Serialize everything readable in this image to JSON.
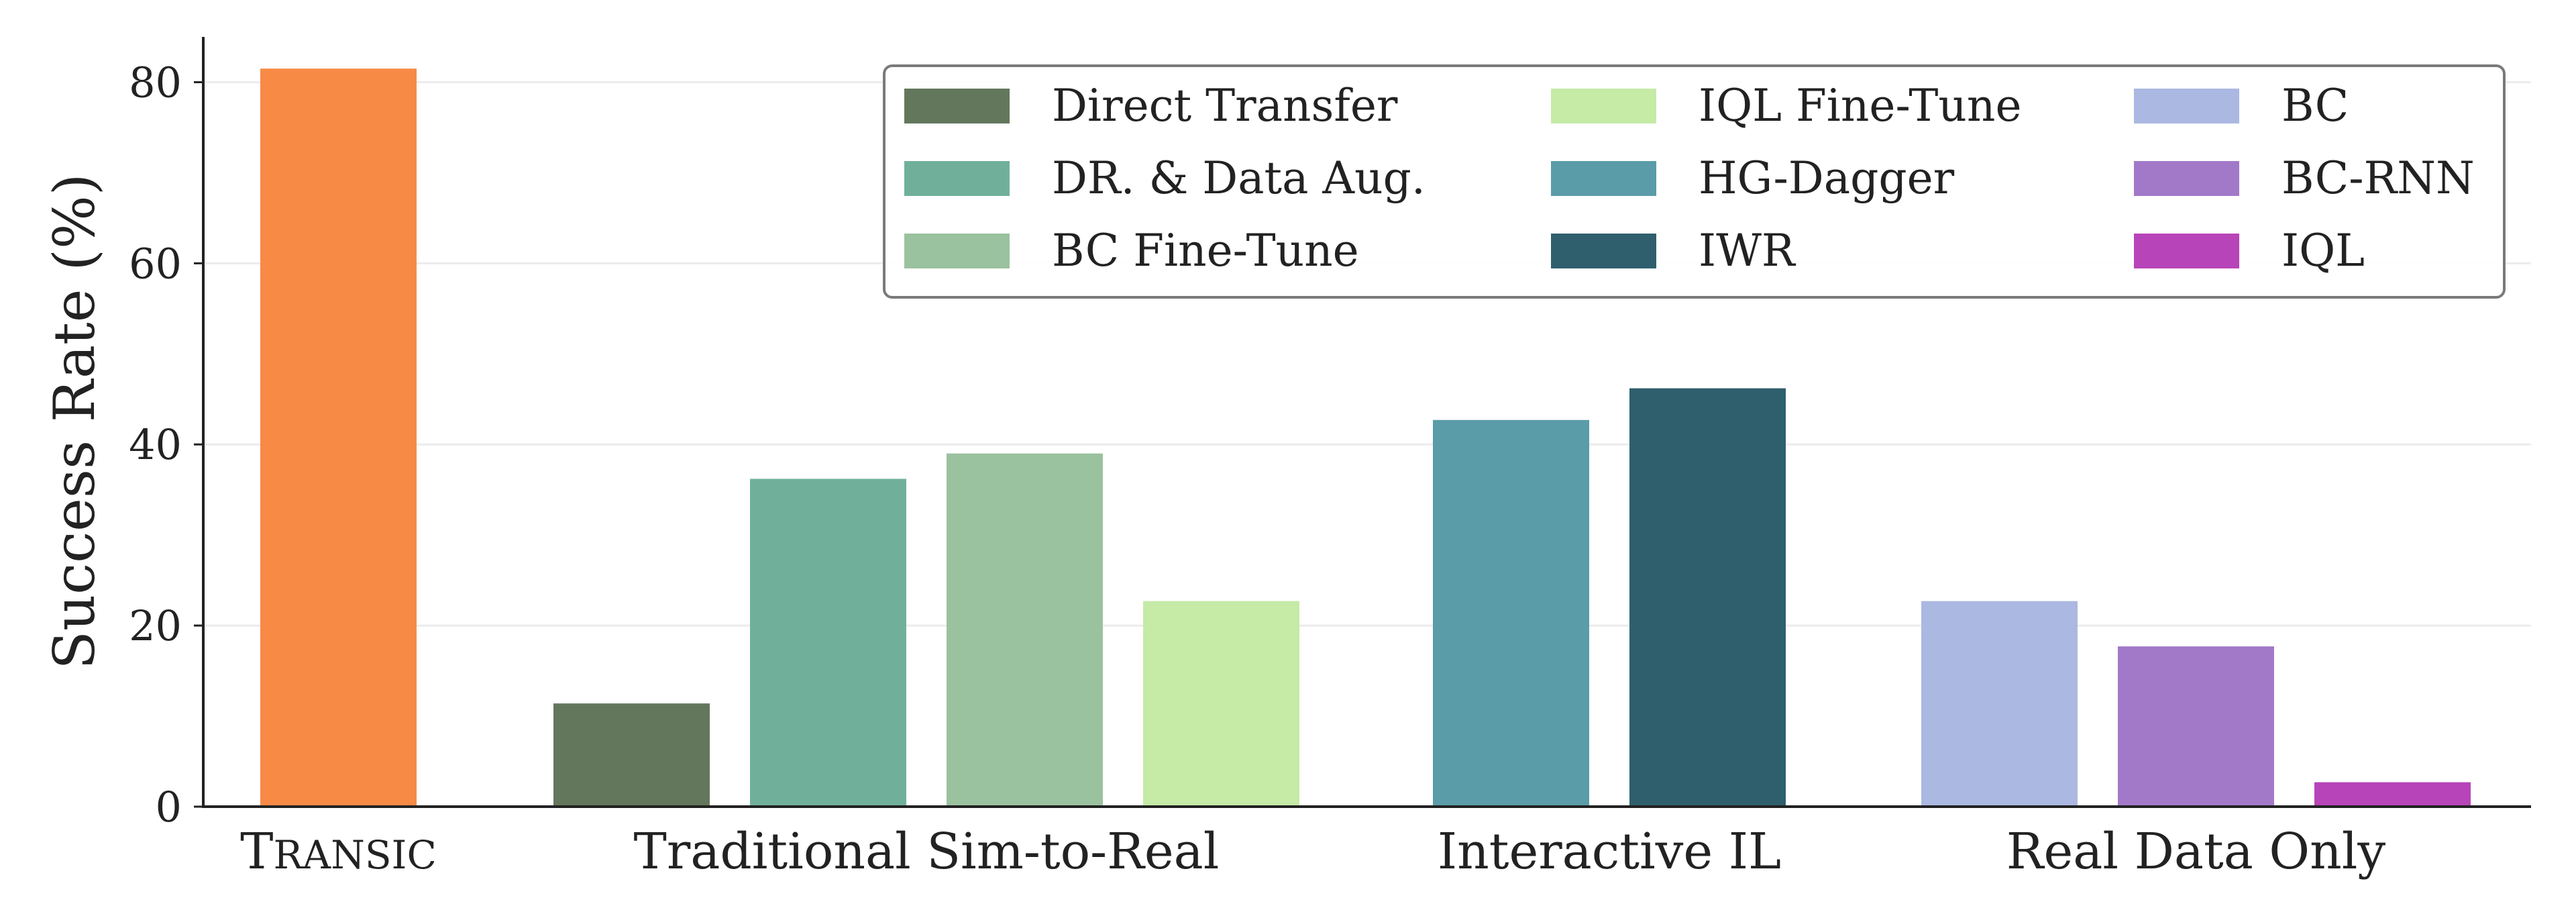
{
  "chart_data": {
    "type": "bar",
    "ylabel": "Success Rate (%)",
    "ylim": [
      0,
      85
    ],
    "yticks": [
      0,
      20,
      40,
      60,
      80
    ],
    "grid": "horizontal",
    "legend_position": "top-right",
    "groups": [
      {
        "label": "Transic",
        "label_small_caps": true,
        "series": [
          "Transic"
        ]
      },
      {
        "label": "Traditional Sim-to-Real",
        "series": [
          "Direct Transfer",
          "DR. & Data Aug.",
          "BC Fine-Tune",
          "IQL Fine-Tune"
        ]
      },
      {
        "label": "Interactive IL",
        "series": [
          "HG-Dagger",
          "IWR"
        ]
      },
      {
        "label": "Real Data Only",
        "series": [
          "BC",
          "BC-RNN",
          "IQL"
        ]
      }
    ],
    "series": [
      {
        "name": "Transic",
        "value": 81.5,
        "color": "#f78a45",
        "in_legend": false
      },
      {
        "name": "Direct Transfer",
        "value": 11.4,
        "color": "#63775c",
        "in_legend": true
      },
      {
        "name": "DR. & Data Aug.",
        "value": 36.2,
        "color": "#70b09a",
        "in_legend": true
      },
      {
        "name": "BC Fine-Tune",
        "value": 39.0,
        "color": "#9ac29f",
        "in_legend": true
      },
      {
        "name": "IQL Fine-Tune",
        "value": 22.7,
        "color": "#c5eba7",
        "in_legend": true
      },
      {
        "name": "HG-Dagger",
        "value": 42.7,
        "color": "#5a9ca8",
        "in_legend": true
      },
      {
        "name": "IWR",
        "value": 46.2,
        "color": "#2f5f6d",
        "in_legend": true
      },
      {
        "name": "BC",
        "value": 22.7,
        "color": "#abb8e2",
        "in_legend": true
      },
      {
        "name": "BC-RNN",
        "value": 17.7,
        "color": "#a279c8",
        "in_legend": true
      },
      {
        "name": "IQL",
        "value": 2.7,
        "color": "#b744b8",
        "in_legend": true
      }
    ]
  }
}
